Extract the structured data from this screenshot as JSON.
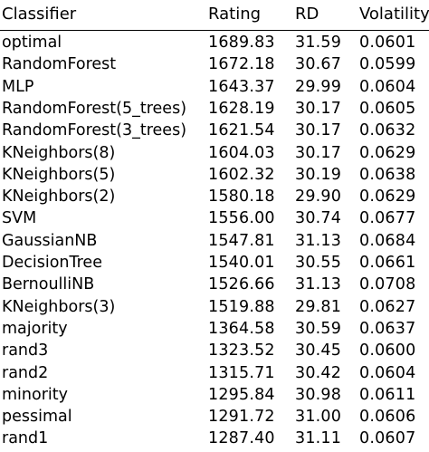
{
  "table": {
    "columns": [
      "Classifier",
      "Rating",
      "RD",
      "Volatility"
    ],
    "rows": [
      {
        "classifier": "optimal",
        "rating": "1689.83",
        "rd": "31.59",
        "volatility": "0.0601"
      },
      {
        "classifier": "RandomForest",
        "rating": "1672.18",
        "rd": "30.67",
        "volatility": "0.0599"
      },
      {
        "classifier": "MLP",
        "rating": "1643.37",
        "rd": "29.99",
        "volatility": "0.0604"
      },
      {
        "classifier": "RandomForest(5_trees)",
        "rating": "1628.19",
        "rd": "30.17",
        "volatility": "0.0605"
      },
      {
        "classifier": "RandomForest(3_trees)",
        "rating": "1621.54",
        "rd": "30.17",
        "volatility": "0.0632"
      },
      {
        "classifier": "KNeighbors(8)",
        "rating": "1604.03",
        "rd": "30.17",
        "volatility": "0.0629"
      },
      {
        "classifier": "KNeighbors(5)",
        "rating": "1602.32",
        "rd": "30.19",
        "volatility": "0.0638"
      },
      {
        "classifier": "KNeighbors(2)",
        "rating": "1580.18",
        "rd": "29.90",
        "volatility": "0.0629"
      },
      {
        "classifier": "SVM",
        "rating": "1556.00",
        "rd": "30.74",
        "volatility": "0.0677"
      },
      {
        "classifier": "GaussianNB",
        "rating": "1547.81",
        "rd": "31.13",
        "volatility": "0.0684"
      },
      {
        "classifier": "DecisionTree",
        "rating": "1540.01",
        "rd": "30.55",
        "volatility": "0.0661"
      },
      {
        "classifier": "BernoulliNB",
        "rating": "1526.66",
        "rd": "31.13",
        "volatility": "0.0708"
      },
      {
        "classifier": "KNeighbors(3)",
        "rating": "1519.88",
        "rd": "29.81",
        "volatility": "0.0627"
      },
      {
        "classifier": "majority",
        "rating": "1364.58",
        "rd": "30.59",
        "volatility": "0.0637"
      },
      {
        "classifier": "rand3",
        "rating": "1323.52",
        "rd": "30.45",
        "volatility": "0.0600"
      },
      {
        "classifier": "rand2",
        "rating": "1315.71",
        "rd": "30.42",
        "volatility": "0.0604"
      },
      {
        "classifier": "minority",
        "rating": "1295.84",
        "rd": "30.98",
        "volatility": "0.0611"
      },
      {
        "classifier": "pessimal",
        "rating": "1291.72",
        "rd": "31.00",
        "volatility": "0.0606"
      },
      {
        "classifier": "rand1",
        "rating": "1287.40",
        "rd": "31.11",
        "volatility": "0.0607"
      }
    ]
  }
}
